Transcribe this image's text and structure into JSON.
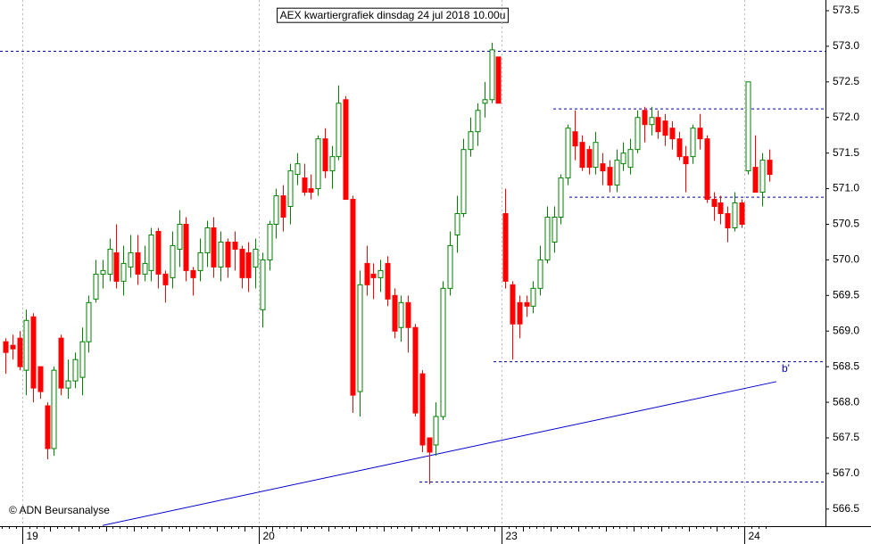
{
  "chart_data": {
    "type": "candlestick",
    "title": "AEX kwartiergrafiek dinsdag 24 jul 2018 10.00u",
    "copyright": "© ADN Beursanalyse",
    "categories": [
      null,
      null,
      null,
      "19",
      null,
      null,
      null,
      null,
      null,
      null,
      null,
      null,
      null,
      null,
      null,
      null,
      null,
      null,
      null,
      null,
      null,
      null,
      null,
      null,
      null,
      null,
      null,
      null,
      null,
      null,
      null,
      null,
      null,
      null,
      null,
      null,
      null,
      "20",
      null,
      null,
      null,
      null,
      null,
      null,
      null,
      null,
      null,
      null,
      null,
      null,
      null,
      null,
      null,
      null,
      null,
      null,
      null,
      null,
      null,
      null,
      null,
      null,
      null,
      null,
      null,
      null,
      null,
      null,
      null,
      null,
      null,
      null,
      "23",
      null,
      null,
      null,
      null,
      null,
      null,
      null,
      null,
      null,
      null,
      null,
      null,
      null,
      null,
      null,
      null,
      null,
      null,
      null,
      null,
      null,
      null,
      null,
      null,
      null,
      null,
      null,
      null,
      null,
      null,
      null,
      null,
      null,
      null,
      "24",
      null,
      null,
      null
    ],
    "open": [
      568.85,
      568.8,
      568.9,
      568.45,
      569.2,
      568.5,
      567.95,
      567.35,
      568.9,
      568.2,
      568.3,
      568.35,
      568.85,
      569.45,
      569.8,
      569.8,
      570.1,
      569.7,
      569.9,
      570.1,
      569.8,
      569.85,
      570.4,
      569.8,
      569.75,
      570.15,
      570.5,
      569.85,
      569.85,
      570.1,
      570.45,
      569.9,
      570.25,
      570.25,
      570.15,
      570.1,
      569.9,
      569.3,
      570.0,
      570.5,
      570.9,
      570.75,
      571.2,
      571.15,
      571.0,
      571.0,
      571.7,
      571.25,
      571.45,
      572.25,
      570.85,
      568.15,
      569.95,
      569.8,
      569.75,
      569.95,
      569.5,
      569.05,
      569.4,
      569.05,
      568.4,
      567.5,
      567.4,
      567.8,
      569.6,
      570.35,
      570.65,
      571.55,
      571.8,
      572.2,
      572.25,
      572.85,
      570.65,
      569.65,
      569.4,
      569.4,
      569.35,
      569.6,
      570.0,
      570.25,
      570.6,
      571.15,
      571.8,
      571.65,
      571.55,
      571.3,
      571.35,
      571.3,
      571.05,
      571.35,
      571.3,
      571.55,
      572.1,
      571.9,
      572.0,
      571.95,
      571.85,
      571.7,
      571.45,
      571.45,
      571.85,
      571.7,
      570.85,
      570.8,
      570.65,
      570.45,
      570.8,
      571.25,
      571.3,
      570.95,
      571.4
    ],
    "high": [
      568.9,
      568.95,
      569.0,
      569.3,
      569.25,
      568.5,
      568.0,
      568.5,
      568.95,
      568.6,
      568.7,
      569.05,
      569.5,
      570.0,
      570.0,
      570.3,
      570.5,
      570.2,
      570.35,
      570.35,
      570.2,
      570.45,
      570.45,
      569.85,
      570.4,
      570.7,
      570.6,
      569.9,
      570.3,
      570.55,
      570.6,
      570.4,
      570.3,
      570.4,
      570.2,
      570.25,
      570.3,
      570.1,
      570.55,
      571.0,
      571.05,
      571.35,
      571.5,
      571.35,
      571.2,
      571.75,
      571.85,
      571.6,
      572.45,
      572.3,
      570.9,
      569.85,
      570.2,
      569.95,
      570.0,
      570.05,
      569.6,
      569.5,
      569.5,
      569.1,
      568.45,
      567.5,
      568.0,
      569.7,
      570.4,
      570.9,
      571.7,
      572.0,
      572.2,
      572.5,
      573.05,
      572.85,
      571.0,
      569.7,
      569.5,
      569.5,
      569.7,
      570.2,
      570.75,
      570.75,
      571.2,
      571.9,
      572.1,
      571.75,
      571.6,
      571.8,
      571.5,
      571.4,
      571.55,
      571.65,
      571.7,
      572.1,
      572.15,
      572.15,
      572.1,
      572.05,
      571.95,
      571.8,
      571.6,
      571.9,
      572.05,
      571.75,
      570.95,
      570.9,
      570.75,
      570.95,
      570.85,
      572.5,
      571.75,
      571.5,
      571.55
    ],
    "low": [
      568.4,
      568.6,
      568.45,
      568.1,
      568.0,
      568.05,
      567.2,
      567.25,
      568.1,
      568.05,
      568.2,
      568.1,
      568.7,
      569.4,
      569.6,
      569.7,
      569.6,
      569.5,
      569.75,
      569.65,
      569.7,
      569.7,
      569.6,
      569.4,
      569.6,
      569.9,
      569.7,
      569.5,
      569.7,
      569.9,
      569.75,
      569.7,
      569.75,
      569.85,
      569.6,
      569.55,
      569.6,
      569.05,
      569.85,
      570.3,
      570.4,
      570.5,
      571.05,
      570.9,
      570.85,
      570.9,
      571.15,
      571.0,
      571.4,
      570.85,
      567.85,
      567.8,
      569.5,
      569.45,
      569.55,
      569.35,
      568.9,
      568.85,
      568.7,
      567.8,
      567.3,
      566.85,
      567.25,
      567.75,
      569.5,
      570.1,
      570.6,
      571.45,
      571.6,
      572.0,
      572.2,
      572.2,
      569.6,
      568.6,
      568.9,
      569.2,
      569.25,
      569.5,
      569.95,
      570.1,
      570.5,
      571.05,
      571.4,
      571.25,
      571.2,
      571.2,
      571.05,
      570.95,
      570.95,
      571.25,
      571.2,
      571.5,
      571.65,
      571.75,
      571.7,
      571.6,
      571.55,
      571.4,
      570.95,
      571.35,
      571.55,
      570.8,
      570.55,
      570.5,
      570.25,
      570.4,
      570.45,
      571.2,
      570.95,
      570.75,
      571.1
    ],
    "close": [
      568.7,
      568.75,
      568.5,
      569.15,
      568.2,
      568.15,
      567.35,
      568.45,
      568.2,
      568.3,
      568.6,
      568.85,
      569.4,
      569.8,
      569.85,
      570.15,
      569.7,
      569.95,
      570.1,
      569.8,
      569.95,
      570.35,
      569.8,
      569.65,
      570.2,
      570.5,
      569.85,
      569.75,
      570.1,
      570.45,
      569.9,
      570.25,
      569.9,
      570.15,
      569.75,
      569.75,
      570.15,
      570.0,
      570.5,
      570.9,
      570.6,
      571.25,
      571.35,
      570.95,
      570.95,
      571.7,
      571.25,
      571.45,
      572.2,
      570.85,
      568.1,
      569.65,
      569.65,
      569.75,
      569.85,
      569.45,
      569.0,
      569.4,
      569.05,
      567.85,
      567.4,
      567.3,
      567.8,
      569.6,
      570.2,
      570.65,
      571.55,
      571.8,
      572.1,
      572.25,
      572.95,
      572.2,
      569.7,
      569.1,
      569.1,
      569.35,
      569.6,
      570.0,
      570.6,
      570.6,
      571.15,
      571.85,
      571.6,
      571.3,
      571.3,
      571.65,
      571.25,
      571.05,
      571.4,
      571.5,
      571.55,
      572.0,
      571.9,
      572.0,
      571.8,
      571.75,
      571.7,
      571.45,
      571.35,
      571.85,
      571.7,
      570.85,
      570.75,
      570.65,
      570.45,
      570.8,
      570.5,
      572.5,
      570.95,
      571.4,
      571.2
    ],
    "up_color": "#008000",
    "down_color": "#ff0000",
    "levels": [
      572.93,
      572.12,
      570.88,
      568.57,
      566.88
    ],
    "level_color": "#0000aa",
    "trendline": {
      "label": "b'",
      "values": [
        566.27,
        568.29
      ],
      "color": "#0000cc"
    },
    "ylim": [
      566.26,
      573.65
    ],
    "yticks": [
      573.5,
      {
        "value": 573,
        "label": "573.0"
      },
      572.5,
      {
        "value": 572,
        "label": "572.0"
      },
      571.5,
      {
        "value": 571,
        "label": "571.0"
      },
      570.5,
      {
        "value": 570,
        "label": "570.0"
      },
      569.5,
      {
        "value": 569,
        "label": "569.0"
      },
      568.5,
      {
        "value": 568,
        "label": "568.0"
      },
      567.5,
      {
        "value": 567,
        "label": "567.0"
      },
      566.5
    ]
  }
}
